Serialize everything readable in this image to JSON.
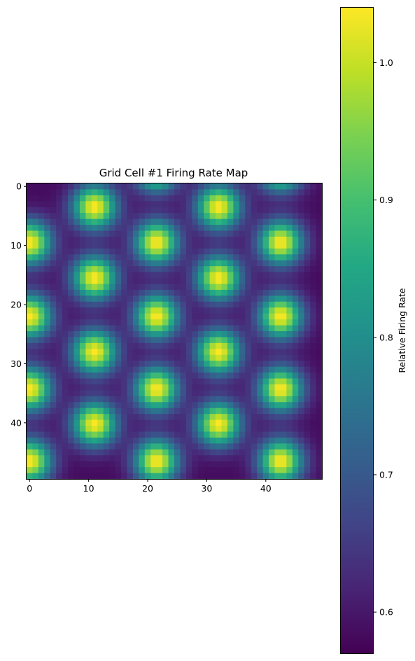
{
  "chart_data": {
    "type": "heatmap",
    "title": "Grid Cell #1 Firing Rate Map",
    "grid_size": [
      50,
      50
    ],
    "x_ticks": [
      "0",
      "10",
      "20",
      "30",
      "40"
    ],
    "x_tick_values": [
      0,
      10,
      20,
      30,
      40
    ],
    "y_ticks": [
      "0",
      "10",
      "20",
      "30",
      "40"
    ],
    "y_tick_values": [
      0,
      10,
      20,
      30,
      40
    ],
    "origin": "upper",
    "peak_spacing_x": 10.6,
    "peak_spacing_y": 12.4,
    "peak_centers": [
      [
        0,
        9.5
      ],
      [
        21.5,
        9.5
      ],
      [
        42.5,
        9.5
      ],
      [
        0,
        22
      ],
      [
        21.5,
        22
      ],
      [
        42.5,
        22
      ],
      [
        0,
        34.3
      ],
      [
        21.5,
        34.3
      ],
      [
        42.5,
        34.3
      ],
      [
        0,
        46.5
      ],
      [
        21.5,
        46.5
      ],
      [
        42.5,
        46.5
      ],
      [
        11,
        3.5
      ],
      [
        32,
        3.5
      ],
      [
        11,
        15.5
      ],
      [
        32,
        15.5
      ],
      [
        11,
        28
      ],
      [
        32,
        28
      ],
      [
        11,
        40.2
      ],
      [
        32,
        40.2
      ],
      [
        21.5,
        -3
      ],
      [
        42.5,
        -3
      ]
    ],
    "value_range": [
      0.57,
      1.04
    ],
    "colormap": "viridis",
    "colorbar": {
      "label": "Relative Firing Rate",
      "ticks": [
        "0.6",
        "0.7",
        "0.8",
        "0.9",
        "1.0"
      ],
      "tick_values": [
        0.6,
        0.7,
        0.8,
        0.9,
        1.0
      ],
      "vmin": 0.57,
      "vmax": 1.04
    }
  }
}
